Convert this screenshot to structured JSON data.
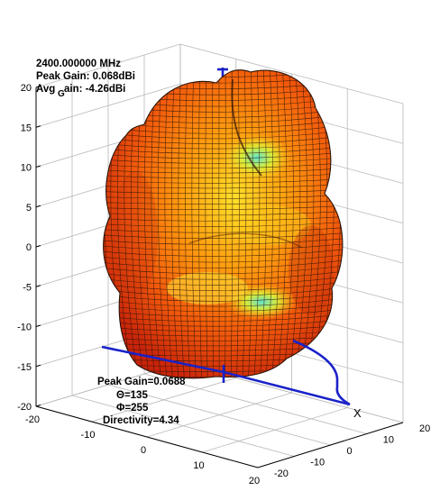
{
  "chart_data": {
    "type": "3d-surface",
    "title_lines": [
      "2400.000000 MHz",
      "Peak Gain: 0.068dBi",
      "Avg",
      "G",
      "ain: -4.26dBi"
    ],
    "peak_info": [
      "Peak Gain=0.0688",
      "Θ=135",
      "Φ=255",
      "Directivity=4.34"
    ],
    "axis_label_x": "X",
    "z_ticks": [
      20,
      15,
      10,
      5,
      0,
      -5,
      -10,
      -15,
      -20
    ],
    "zlim": [
      -20,
      20
    ],
    "y_ticks_front": [
      -20,
      -10,
      0,
      10,
      20
    ],
    "x_ticks_right": [
      20,
      10,
      0,
      -10,
      -20
    ],
    "x_ticks_right_labels": [
      "20",
      "10",
      "0",
      "-10",
      "-20"
    ],
    "peak_gain_dbi": 0.068,
    "avg_gain_dbi": -4.26,
    "frequency_mhz": 2400.0,
    "peak_theta_deg": 135,
    "peak_phi_deg": 255,
    "directivity": 4.34,
    "grid": true,
    "colormap": "hot (red-orange-yellow-cyan)",
    "axis_line_color": "#1a22c8"
  }
}
